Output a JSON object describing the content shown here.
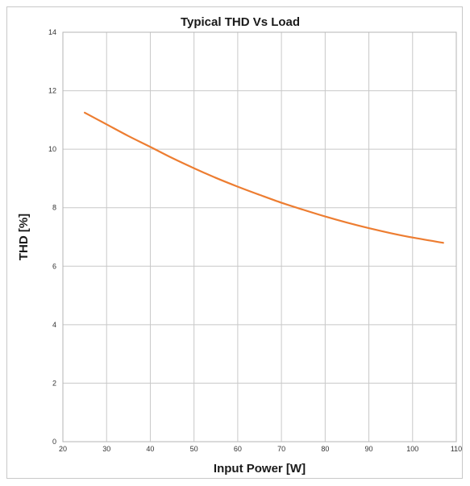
{
  "chart_data": {
    "type": "line",
    "title": "Typical THD Vs Load",
    "xlabel": "Input Power [W]",
    "ylabel": "THD [%]",
    "xlim": [
      20,
      110
    ],
    "ylim": [
      0,
      14
    ],
    "xticks": [
      20,
      30,
      40,
      50,
      60,
      70,
      80,
      90,
      100,
      110
    ],
    "yticks": [
      0,
      2,
      4,
      6,
      8,
      10,
      12,
      14
    ],
    "grid": true,
    "legend": "none",
    "series": [
      {
        "color": "#ed7d31",
        "x": [
          25,
          30,
          35,
          40,
          45,
          50,
          55,
          60,
          65,
          70,
          75,
          80,
          85,
          90,
          95,
          100,
          107
        ],
        "y": [
          11.25,
          10.85,
          10.45,
          10.08,
          9.7,
          9.35,
          9.02,
          8.72,
          8.44,
          8.17,
          7.93,
          7.7,
          7.49,
          7.3,
          7.13,
          6.98,
          6.8
        ]
      }
    ]
  }
}
